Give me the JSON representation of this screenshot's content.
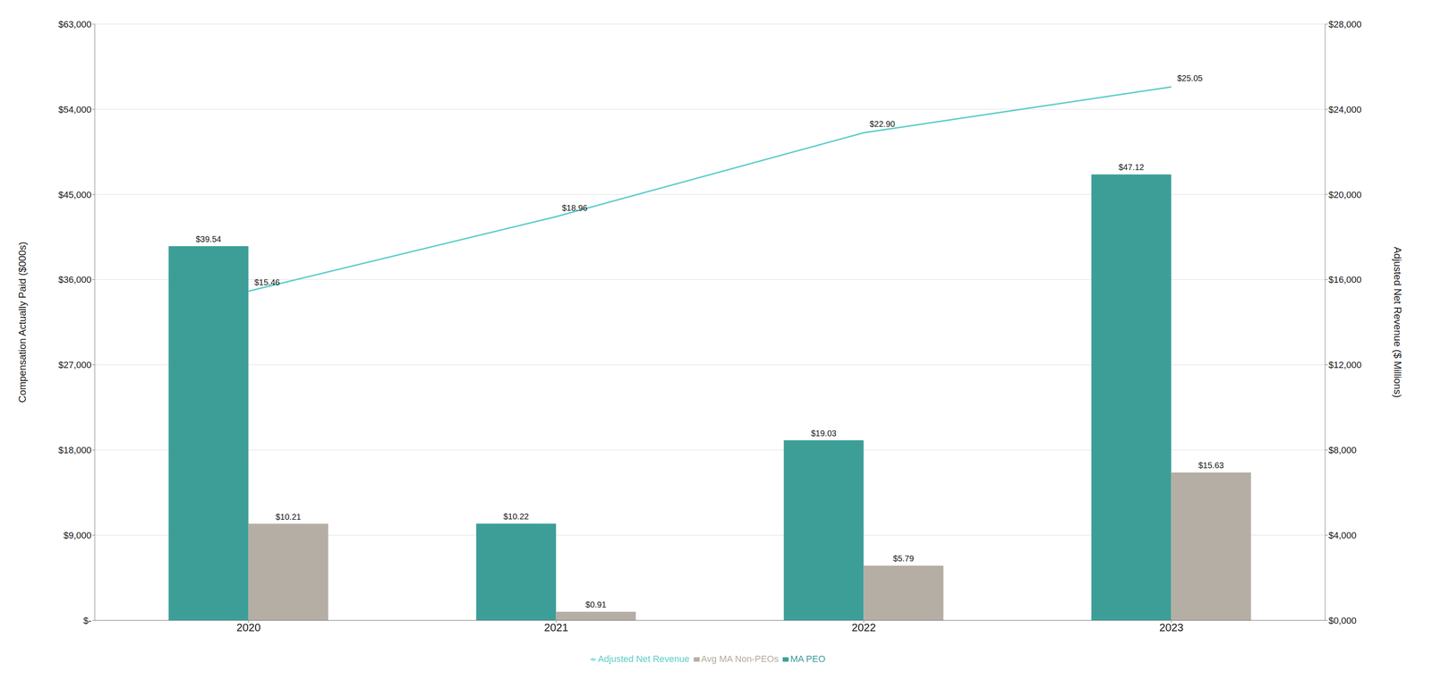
{
  "chart_data": {
    "type": "bar",
    "categories": [
      "2020",
      "2021",
      "2022",
      "2023"
    ],
    "ylabel": "Compensation Actually Paid ($000s)",
    "y2label": "Adjusted Net Revenue ($ Millions)",
    "ylim": [
      0,
      63000
    ],
    "yticks": [
      {
        "value": 0,
        "label": "$-"
      },
      {
        "value": 9000,
        "label": "$9,000"
      },
      {
        "value": 18000,
        "label": "$18,000"
      },
      {
        "value": 27000,
        "label": "$27,000"
      },
      {
        "value": 36000,
        "label": "$36,000"
      },
      {
        "value": 45000,
        "label": "$45,000"
      },
      {
        "value": 54000,
        "label": "$54,000"
      },
      {
        "value": 63000,
        "label": "$63,000"
      }
    ],
    "y2lim": [
      0,
      28000
    ],
    "y2ticks": [
      {
        "value": 0,
        "label": "$0,000"
      },
      {
        "value": 4000,
        "label": "$4,000"
      },
      {
        "value": 8000,
        "label": "$8,000"
      },
      {
        "value": 12000,
        "label": "$12,000"
      },
      {
        "value": 16000,
        "label": "$16,000"
      },
      {
        "value": 20000,
        "label": "$20,000"
      },
      {
        "value": 24000,
        "label": "$24,000"
      },
      {
        "value": 28000,
        "label": "$28,000"
      }
    ],
    "grid": true,
    "legend": "bottom",
    "data_labels": true,
    "series": [
      {
        "name": "MA PEO",
        "type": "bar",
        "color": "#3d9e98",
        "values": [
          39540,
          10220,
          19030,
          47120
        ],
        "value_labels": [
          "$39.54",
          "$10.22",
          "$19.03",
          "$47.12"
        ]
      },
      {
        "name": "Avg MA Non-PEOs",
        "type": "bar",
        "color": "#b5aea4",
        "values": [
          10210,
          910,
          5790,
          15630
        ],
        "value_labels": [
          "$10.21",
          "$0.91",
          "$5.79",
          "$15.63"
        ]
      },
      {
        "name": "Adjusted Net Revenue",
        "type": "line",
        "axis": "y2",
        "color": "#5ecec8",
        "values": [
          15460,
          18960,
          22900,
          25050
        ],
        "value_labels": [
          "$15.46",
          "$18.96",
          "$22.90",
          "$25.05"
        ]
      }
    ]
  }
}
